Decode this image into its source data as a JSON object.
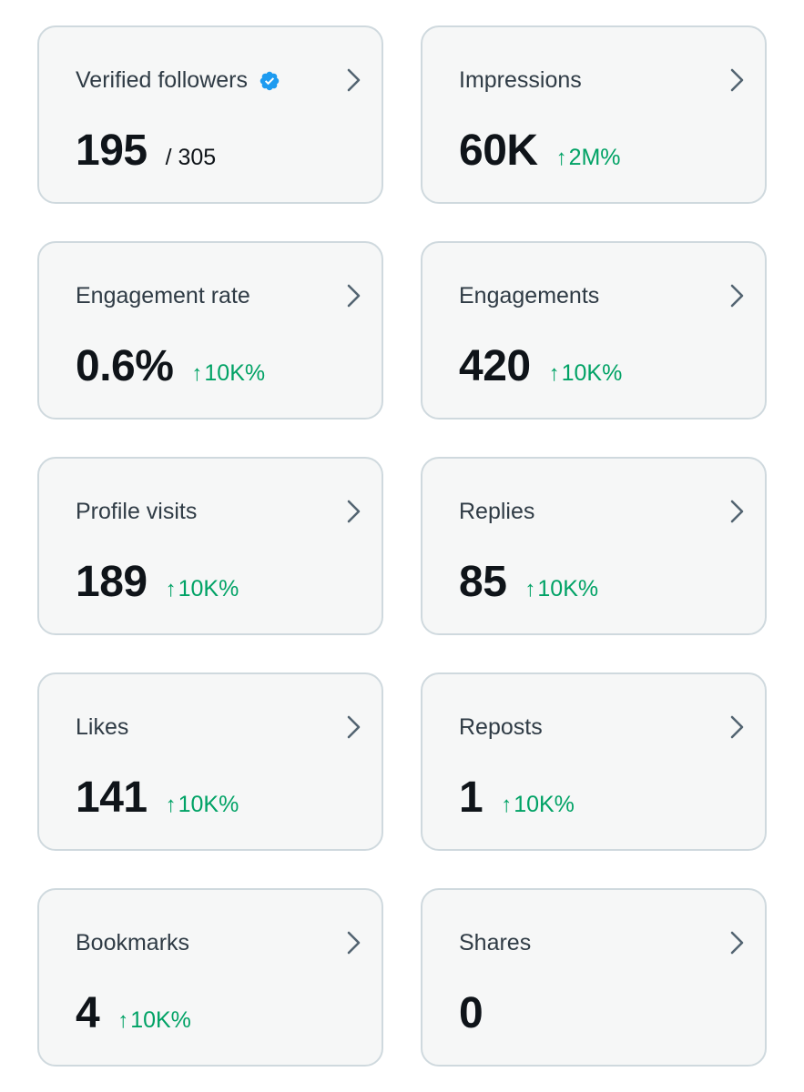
{
  "cards": [
    {
      "label": "Verified followers",
      "value": "195",
      "total": "/ 305",
      "verified": true
    },
    {
      "label": "Impressions",
      "value": "60K",
      "change": "2M%"
    },
    {
      "label": "Engagement rate",
      "value": "0.6%",
      "change": "10K%"
    },
    {
      "label": "Engagements",
      "value": "420",
      "change": "10K%"
    },
    {
      "label": "Profile visits",
      "value": "189",
      "change": "10K%"
    },
    {
      "label": "Replies",
      "value": "85",
      "change": "10K%"
    },
    {
      "label": "Likes",
      "value": "141",
      "change": "10K%"
    },
    {
      "label": "Reposts",
      "value": "1",
      "change": "10K%"
    },
    {
      "label": "Bookmarks",
      "value": "4",
      "change": "10K%"
    },
    {
      "label": "Shares",
      "value": "0"
    }
  ],
  "icons": {
    "arrow": "↑",
    "chevron": "chevron-right-icon",
    "verified": "verified-badge-icon"
  },
  "colors": {
    "accent_positive": "#00a265",
    "verified_blue": "#1d9bf0",
    "card_border": "#cfd9de",
    "card_background": "#f6f7f7",
    "label": "#536471",
    "value": "#0f1419"
  }
}
